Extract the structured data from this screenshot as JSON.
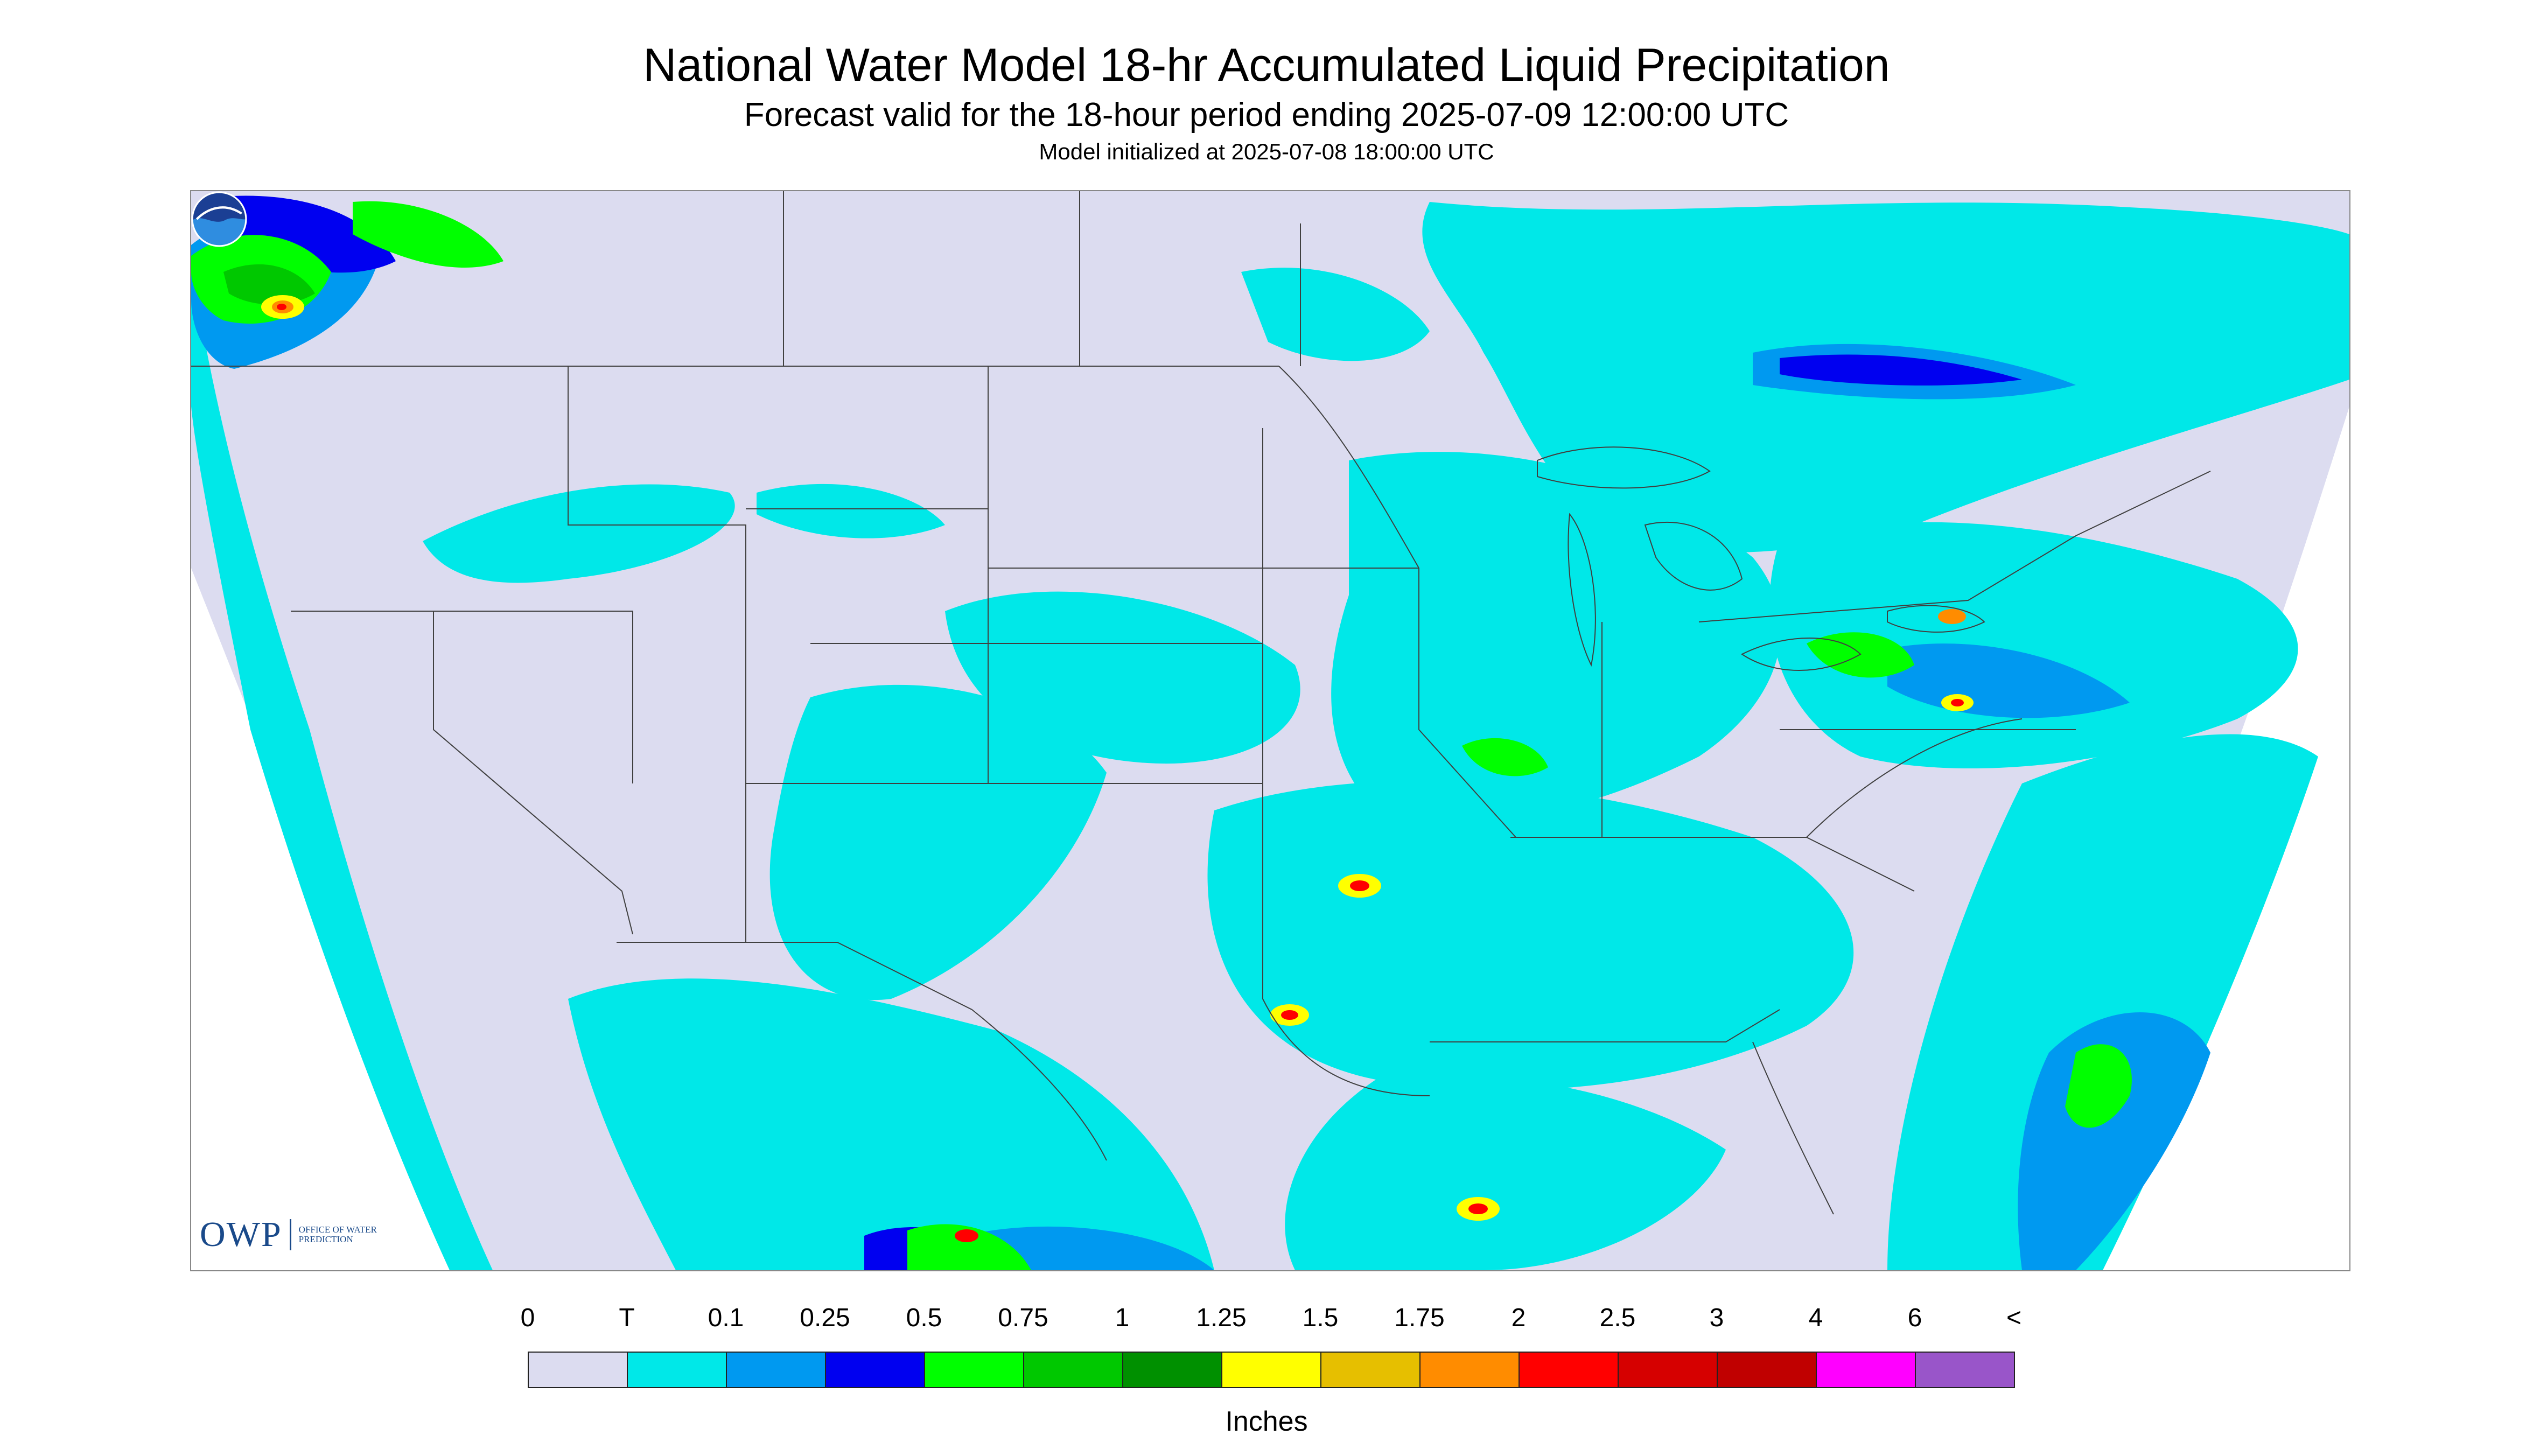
{
  "title": "National Water Model 18-hr Accumulated Liquid Precipitation",
  "subtitle": "Forecast valid for the 18-hour period ending 2025-07-09 12:00:00 UTC",
  "init_line": "Model initialized at 2025-07-08 18:00:00 UTC",
  "legend": {
    "labels": [
      "0",
      "T",
      "0.1",
      "0.25",
      "0.5",
      "0.75",
      "1",
      "1.25",
      "1.5",
      "1.75",
      "2",
      "2.5",
      "3",
      "4",
      "6",
      "<"
    ],
    "colors": [
      "#dcdcf0",
      "#00e8e8",
      "#0099f0",
      "#0000f0",
      "#00ff00",
      "#00c800",
      "#009000",
      "#ffff00",
      "#e6bf00",
      "#ff8c00",
      "#ff0000",
      "#d60000",
      "#c00000",
      "#ff00ff",
      "#9955c9"
    ],
    "units": "Inches"
  },
  "logos": {
    "owp_mark": "OWP",
    "owp_text": "Office of Water Prediction",
    "noaa": "NOAA"
  },
  "colors": {
    "no_precip": "#dcdcf0",
    "trace": "#00e8e8",
    "outside_domain": "#ffffff",
    "boundaries": "#404040"
  }
}
